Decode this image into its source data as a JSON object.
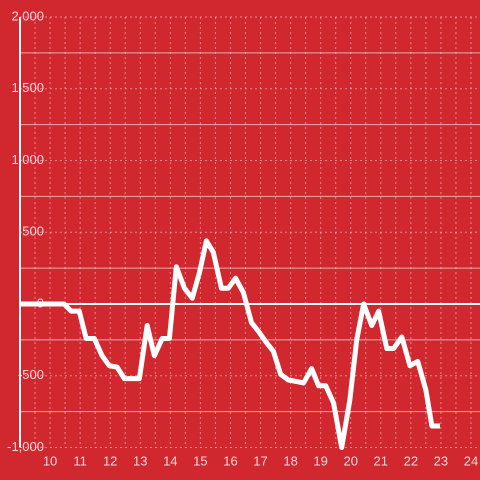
{
  "chart_data": {
    "type": "line",
    "x": [
      9.0,
      10.47,
      10.7,
      10.97,
      11.2,
      11.47,
      11.73,
      11.97,
      12.23,
      12.47,
      12.73,
      12.97,
      13.23,
      13.47,
      13.73,
      13.97,
      14.2,
      14.47,
      14.73,
      14.97,
      15.2,
      15.43,
      15.7,
      15.93,
      16.17,
      16.43,
      16.7,
      16.93,
      17.2,
      17.43,
      17.67,
      17.93,
      18.2,
      18.43,
      18.7,
      18.93,
      19.17,
      19.43,
      19.7,
      19.97,
      20.2,
      20.43,
      20.7,
      20.93,
      21.2,
      21.43,
      21.7,
      21.97,
      22.23,
      22.5,
      22.7,
      22.97
    ],
    "values": [
      0,
      0,
      -50,
      -50,
      -240,
      -240,
      -360,
      -430,
      -440,
      -520,
      -520,
      -520,
      -150,
      -360,
      -240,
      -240,
      260,
      110,
      40,
      220,
      440,
      360,
      110,
      110,
      180,
      80,
      -130,
      -190,
      -270,
      -330,
      -490,
      -530,
      -540,
      -550,
      -450,
      -570,
      -570,
      -690,
      -1000,
      -670,
      -250,
      0,
      -150,
      -50,
      -310,
      -310,
      -230,
      -430,
      -400,
      -600,
      -850,
      -850
    ],
    "color": "#ffffff",
    "xlim": [
      9,
      24.3
    ],
    "xticks": [
      10,
      11,
      12,
      13,
      14,
      15,
      16,
      17,
      18,
      19,
      20,
      21,
      22,
      23,
      24
    ],
    "ylim": [
      -1000,
      2000
    ],
    "yticks": [
      {
        "value": -1000,
        "label": "-1,000"
      },
      -500,
      0,
      500,
      {
        "value": 1000,
        "label": "1,000"
      },
      {
        "value": 1500,
        "label": "1,500"
      },
      {
        "value": 2000,
        "label": "2,000"
      }
    ],
    "grid": true
  }
}
